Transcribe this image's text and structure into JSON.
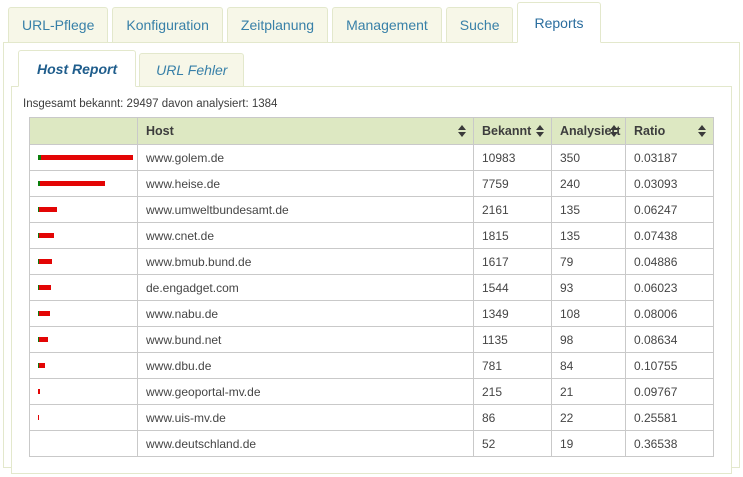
{
  "main_tabs": {
    "items": [
      {
        "label": "URL-Pflege",
        "active": false
      },
      {
        "label": "Konfiguration",
        "active": false
      },
      {
        "label": "Zeitplanung",
        "active": false
      },
      {
        "label": "Management",
        "active": false
      },
      {
        "label": "Suche",
        "active": false
      },
      {
        "label": "Reports",
        "active": true
      }
    ]
  },
  "sub_tabs": {
    "items": [
      {
        "label": "Host Report",
        "active": true
      },
      {
        "label": "URL Fehler",
        "active": false
      }
    ]
  },
  "summary": {
    "text": "Insgesamt bekannt: 29497 davon analysiert: 1384"
  },
  "table": {
    "columns": [
      {
        "label": "",
        "sortable": false
      },
      {
        "label": "Host",
        "sortable": true
      },
      {
        "label": "Bekannt",
        "sortable": true
      },
      {
        "label": "Analysiert",
        "sortable": true
      },
      {
        "label": "Ratio",
        "sortable": true
      }
    ],
    "rows": [
      {
        "host": "www.golem.de",
        "bekannt": 10983,
        "analysiert": 350,
        "ratio": "0.03187"
      },
      {
        "host": "www.heise.de",
        "bekannt": 7759,
        "analysiert": 240,
        "ratio": "0.03093"
      },
      {
        "host": "www.umweltbundesamt.de",
        "bekannt": 2161,
        "analysiert": 135,
        "ratio": "0.06247"
      },
      {
        "host": "www.cnet.de",
        "bekannt": 1815,
        "analysiert": 135,
        "ratio": "0.07438"
      },
      {
        "host": "www.bmub.bund.de",
        "bekannt": 1617,
        "analysiert": 79,
        "ratio": "0.04886"
      },
      {
        "host": "de.engadget.com",
        "bekannt": 1544,
        "analysiert": 93,
        "ratio": "0.06023"
      },
      {
        "host": "www.nabu.de",
        "bekannt": 1349,
        "analysiert": 108,
        "ratio": "0.08006"
      },
      {
        "host": "www.bund.net",
        "bekannt": 1135,
        "analysiert": 98,
        "ratio": "0.08634"
      },
      {
        "host": "www.dbu.de",
        "bekannt": 781,
        "analysiert": 84,
        "ratio": "0.10755"
      },
      {
        "host": "www.geoportal-mv.de",
        "bekannt": 215,
        "analysiert": 21,
        "ratio": "0.09767"
      },
      {
        "host": "www.uis-mv.de",
        "bekannt": 86,
        "analysiert": 22,
        "ratio": "0.25581"
      },
      {
        "host": "www.deutschland.de",
        "bekannt": 52,
        "analysiert": 19,
        "ratio": "0.36538"
      }
    ]
  },
  "colors": {
    "tab_background": "#f7f7e8",
    "panel_border": "#e3e8cc",
    "header_background": "#dde8c2",
    "tab_text": "#3880a8",
    "active_subtab_text": "#1f5d8c",
    "bar_bekannt": "#e30505",
    "bar_analysiert": "#0b7d0b",
    "grid": "#c9c9c9"
  }
}
